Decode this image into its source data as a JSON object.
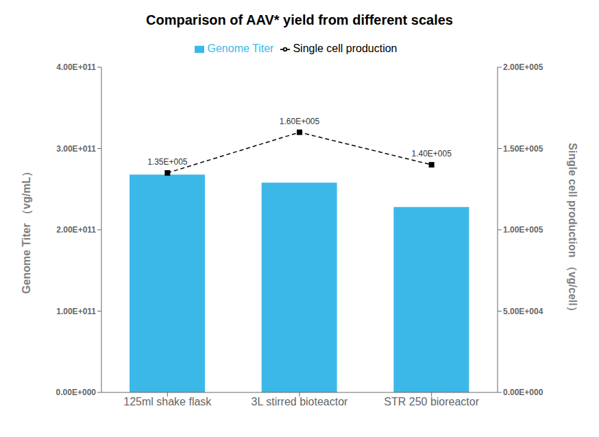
{
  "chart_data": {
    "type": "bar",
    "title": "Comparison of AAV* yield from different scales",
    "categories": [
      "125ml shake flask",
      "3L stirred bioteactor",
      "STR 250 bioreactor"
    ],
    "series": [
      {
        "name": "Genome Titer",
        "type": "bar",
        "color": "#3BB8E8",
        "values": [
          268000000000.0,
          258000000000.0,
          228000000000.0
        ]
      },
      {
        "name": "Single cell production",
        "type": "line",
        "axis": "y2",
        "color": "#000000",
        "marker": "square",
        "line_style": "dashed",
        "data_labels": true,
        "values": [
          135000.0,
          160000.0,
          140000.0
        ],
        "value_labels": [
          "1.35E+005",
          "1.60E+005",
          "1.40E+005"
        ]
      }
    ],
    "ylabel": "Genome Titer （vg/mL）",
    "y2label": "Single cell production （vg/cell）",
    "ylim": [
      0,
      400000000000.0
    ],
    "yticks": [
      {
        "value": 0,
        "label": "0.00E+000"
      },
      {
        "value": 100000000000.0,
        "label": "1.00E+011"
      },
      {
        "value": 200000000000.0,
        "label": "2.00E+011"
      },
      {
        "value": 300000000000.0,
        "label": "3.00E+011"
      },
      {
        "value": 400000000000.0,
        "label": "4.00E+011"
      }
    ],
    "y2lim": [
      0,
      200000.0
    ],
    "y2ticks": [
      {
        "value": 0,
        "label": "0.00E+000"
      },
      {
        "value": 50000.0,
        "label": "5.00E+004"
      },
      {
        "value": 100000.0,
        "label": "1.00E+005"
      },
      {
        "value": 150000.0,
        "label": "1.50E+005"
      },
      {
        "value": 200000.0,
        "label": "2.00E+005"
      }
    ],
    "grid": false,
    "legend": "top"
  }
}
